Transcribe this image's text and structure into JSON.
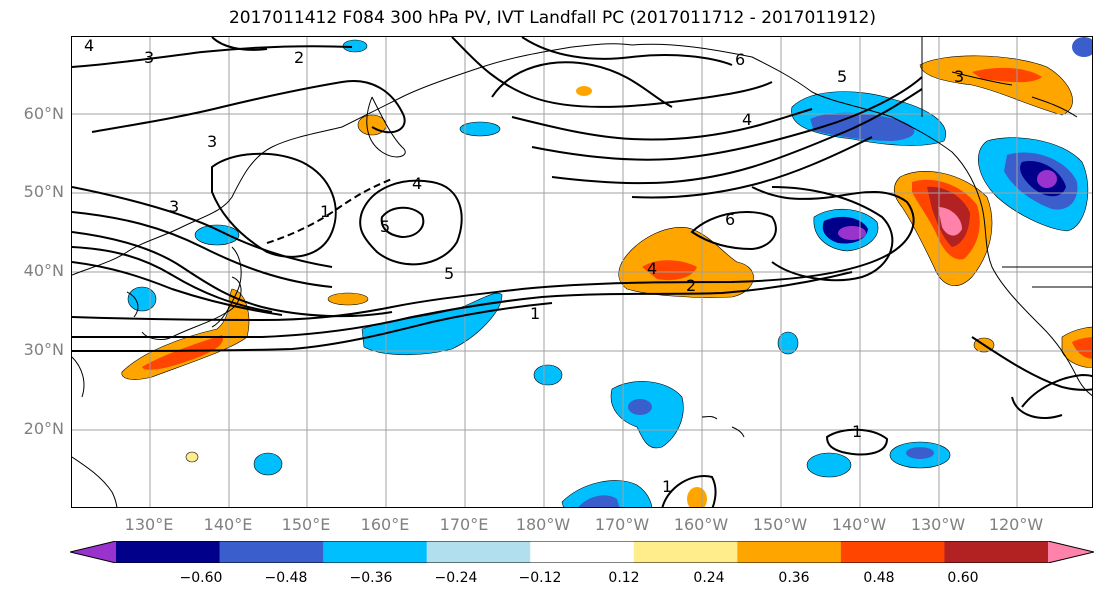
{
  "title": "2017011412 F084 300 hPa PV, IVT Landfall PC (2017011712 - 2017011912)",
  "latitude_labels": [
    "60°N",
    "50°N",
    "40°N",
    "30°N",
    "20°N"
  ],
  "longitude_labels": [
    "130°E",
    "140°E",
    "150°E",
    "160°E",
    "170°E",
    "180°W",
    "170°W",
    "160°W",
    "150°W",
    "140°W",
    "130°W",
    "120°W"
  ],
  "contour_labels": [
    "4",
    "3",
    "2",
    "6",
    "5",
    "3",
    "4",
    "4",
    "3",
    "5",
    "1",
    "6",
    "5",
    "4",
    "2",
    "1",
    "1",
    "1",
    "3"
  ],
  "colorbar": {
    "tick_labels": [
      "−0.60",
      "−0.48",
      "−0.36",
      "−0.24",
      "−0.12",
      "0.12",
      "0.24",
      "0.36",
      "0.48",
      "0.60"
    ],
    "colors": [
      "#9a32cd",
      "#00008b",
      "#3a5fcd",
      "#00bfff",
      "#b2dfee",
      "#ffffff",
      "#ffec8b",
      "#ffa500",
      "#ff4500",
      "#b22222",
      "#ff82ab"
    ]
  }
}
